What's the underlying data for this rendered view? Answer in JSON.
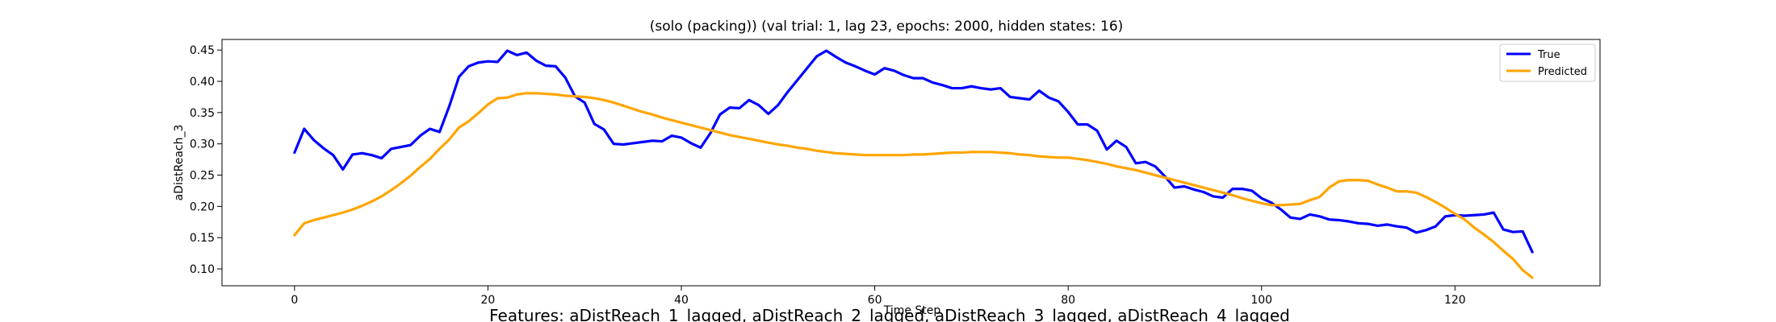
{
  "chart_data": {
    "type": "line",
    "title": "(solo (packing)) (val trial: 1, lag 23, epochs: 2000, hidden states: 16)",
    "xlabel": "Time Step",
    "ylabel": "aDistReach_3",
    "xlim": [
      -7.5,
      135
    ],
    "ylim": [
      0.073,
      0.467
    ],
    "xticks": [
      0,
      20,
      40,
      60,
      80,
      100,
      120
    ],
    "yticks": [
      0.1,
      0.15,
      0.2,
      0.25,
      0.3,
      0.35,
      0.4,
      0.45
    ],
    "ytick_labels": [
      "0.10",
      "0.15",
      "0.20",
      "0.25",
      "0.30",
      "0.35",
      "0.40",
      "0.45"
    ],
    "grid": false,
    "legend_position": "top-right",
    "series": [
      {
        "name": "True",
        "color": "#0000ff",
        "x": [
          0,
          1,
          2,
          3,
          4,
          5,
          6,
          7,
          8,
          9,
          10,
          11,
          12,
          13,
          14,
          15,
          16,
          17,
          18,
          19,
          20,
          21,
          22,
          23,
          24,
          25,
          26,
          27,
          28,
          29,
          30,
          31,
          32,
          33,
          34,
          35,
          36,
          37,
          38,
          39,
          40,
          41,
          42,
          43,
          44,
          45,
          46,
          47,
          48,
          49,
          50,
          51,
          52,
          53,
          54,
          55,
          56,
          57,
          58,
          59,
          60,
          61,
          62,
          63,
          64,
          65,
          66,
          67,
          68,
          69,
          70,
          71,
          72,
          73,
          74,
          75,
          76,
          77,
          78,
          79,
          80,
          81,
          82,
          83,
          84,
          85,
          86,
          87,
          88,
          89,
          90,
          91,
          92,
          93,
          94,
          95,
          96,
          97,
          98,
          99,
          100,
          101,
          102,
          103,
          104,
          105,
          106,
          107,
          108,
          109,
          110,
          111,
          112,
          113,
          114,
          115,
          116,
          117,
          118,
          119,
          120,
          121,
          122,
          123,
          124,
          125,
          126,
          127,
          128
        ],
        "values": [
          0.286,
          0.324,
          0.306,
          0.293,
          0.282,
          0.259,
          0.283,
          0.285,
          0.282,
          0.277,
          0.292,
          0.295,
          0.298,
          0.313,
          0.324,
          0.319,
          0.36,
          0.407,
          0.424,
          0.43,
          0.432,
          0.431,
          0.449,
          0.442,
          0.446,
          0.433,
          0.425,
          0.424,
          0.406,
          0.376,
          0.366,
          0.332,
          0.323,
          0.3,
          0.299,
          0.301,
          0.303,
          0.305,
          0.304,
          0.313,
          0.31,
          0.301,
          0.294,
          0.317,
          0.347,
          0.358,
          0.357,
          0.37,
          0.362,
          0.348,
          0.362,
          0.383,
          0.402,
          0.421,
          0.44,
          0.449,
          0.439,
          0.43,
          0.424,
          0.417,
          0.411,
          0.421,
          0.417,
          0.41,
          0.405,
          0.405,
          0.398,
          0.394,
          0.389,
          0.389,
          0.392,
          0.389,
          0.387,
          0.389,
          0.375,
          0.373,
          0.371,
          0.385,
          0.374,
          0.368,
          0.351,
          0.331,
          0.331,
          0.321,
          0.291,
          0.305,
          0.295,
          0.269,
          0.271,
          0.264,
          0.248,
          0.23,
          0.232,
          0.227,
          0.223,
          0.216,
          0.214,
          0.228,
          0.228,
          0.225,
          0.213,
          0.206,
          0.195,
          0.182,
          0.18,
          0.187,
          0.184,
          0.179,
          0.178,
          0.176,
          0.173,
          0.172,
          0.169,
          0.171,
          0.168,
          0.166,
          0.158,
          0.162,
          0.168,
          0.184,
          0.186,
          0.185,
          0.186,
          0.187,
          0.19,
          0.163,
          0.159,
          0.16,
          0.127
        ]
      },
      {
        "name": "Predicted",
        "color": "#ffa500",
        "x": [
          0,
          1,
          2,
          3,
          4,
          5,
          6,
          7,
          8,
          9,
          10,
          11,
          12,
          13,
          14,
          15,
          16,
          17,
          18,
          19,
          20,
          21,
          22,
          23,
          24,
          25,
          26,
          27,
          28,
          29,
          30,
          31,
          32,
          33,
          34,
          35,
          36,
          37,
          38,
          39,
          40,
          41,
          42,
          43,
          44,
          45,
          46,
          47,
          48,
          49,
          50,
          51,
          52,
          53,
          54,
          55,
          56,
          57,
          58,
          59,
          60,
          61,
          62,
          63,
          64,
          65,
          66,
          67,
          68,
          69,
          70,
          71,
          72,
          73,
          74,
          75,
          76,
          77,
          78,
          79,
          80,
          81,
          82,
          83,
          84,
          85,
          86,
          87,
          88,
          89,
          90,
          91,
          92,
          93,
          94,
          95,
          96,
          97,
          98,
          99,
          100,
          101,
          102,
          103,
          104,
          105,
          106,
          107,
          108,
          109,
          110,
          111,
          112,
          113,
          114,
          115,
          116,
          117,
          118,
          119,
          120,
          121,
          122,
          123,
          124,
          125,
          126,
          127,
          128
        ],
        "values": [
          0.154,
          0.173,
          0.178,
          0.182,
          0.186,
          0.19,
          0.195,
          0.201,
          0.208,
          0.216,
          0.226,
          0.237,
          0.249,
          0.263,
          0.276,
          0.292,
          0.307,
          0.326,
          0.336,
          0.349,
          0.363,
          0.373,
          0.374,
          0.379,
          0.381,
          0.381,
          0.38,
          0.379,
          0.377,
          0.376,
          0.375,
          0.373,
          0.37,
          0.366,
          0.361,
          0.356,
          0.351,
          0.347,
          0.342,
          0.338,
          0.334,
          0.33,
          0.326,
          0.322,
          0.318,
          0.314,
          0.311,
          0.308,
          0.305,
          0.302,
          0.299,
          0.297,
          0.294,
          0.292,
          0.289,
          0.287,
          0.285,
          0.284,
          0.283,
          0.282,
          0.282,
          0.282,
          0.282,
          0.282,
          0.283,
          0.283,
          0.284,
          0.285,
          0.286,
          0.286,
          0.287,
          0.287,
          0.287,
          0.286,
          0.285,
          0.283,
          0.282,
          0.28,
          0.279,
          0.278,
          0.278,
          0.276,
          0.274,
          0.271,
          0.268,
          0.264,
          0.261,
          0.258,
          0.254,
          0.25,
          0.246,
          0.242,
          0.238,
          0.234,
          0.23,
          0.226,
          0.222,
          0.218,
          0.213,
          0.209,
          0.205,
          0.202,
          0.202,
          0.203,
          0.204,
          0.21,
          0.215,
          0.23,
          0.24,
          0.242,
          0.242,
          0.241,
          0.235,
          0.23,
          0.224,
          0.224,
          0.222,
          0.215,
          0.207,
          0.198,
          0.188,
          0.179,
          0.166,
          0.155,
          0.143,
          0.129,
          0.116,
          0.098,
          0.086
        ]
      }
    ],
    "footer": "Features: aDistReach_1_lagged, aDistReach_2_lagged, aDistReach_3_lagged, aDistReach_4_lagged"
  }
}
